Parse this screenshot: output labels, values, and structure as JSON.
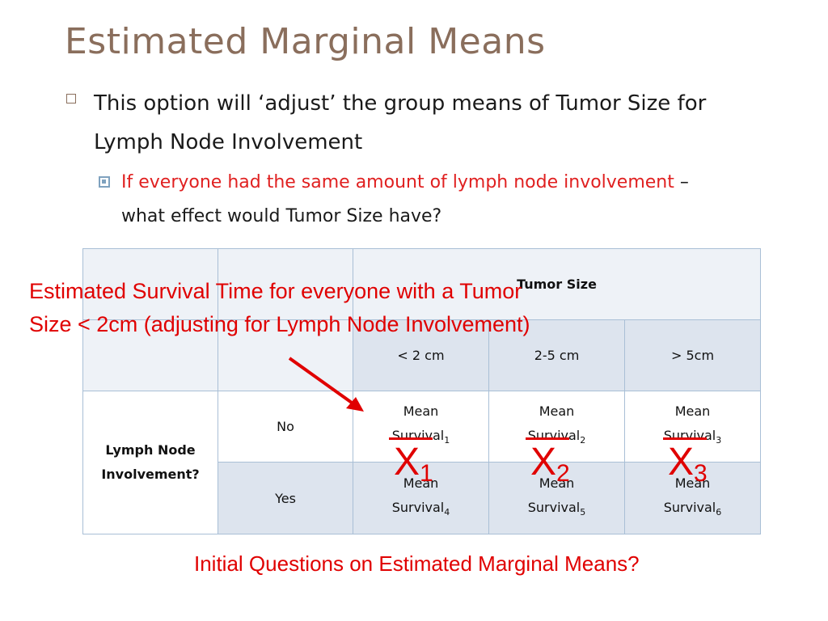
{
  "title": "Estimated Marginal Means",
  "bullet1": "This option will ‘adjust’ the group means of Tumor Size for Lymph Node Involvement",
  "bullet2": {
    "red_text": "If everyone had the same amount of lymph node involvement",
    "rest_text": " – what effect would Tumor Size have?"
  },
  "table": {
    "col_header": "Tumor Size",
    "cols": [
      "< 2 cm",
      "2-5 cm",
      "> 5cm"
    ],
    "row_header": "Lymph Node Involvement?",
    "rows": [
      "No",
      "Yes"
    ],
    "cell_word1": "Mean",
    "cell_word2": "Survival",
    "subs": [
      "1",
      "2",
      "3",
      "4",
      "5",
      "6"
    ]
  },
  "callout": "Estimated Survival Time for everyone with a Tumor Size < 2cm (adjusting for Lymph Node Involvement)",
  "xbar": {
    "letter": "X",
    "subs": [
      "1",
      "2",
      "3"
    ]
  },
  "footer": "Initial Questions on Estimated Marginal Means?",
  "colors": {
    "title": "#8a6e5c",
    "accent_red": "#e00000",
    "table_border": "#a9bfd6",
    "bullet_blue": "#7fa2bf"
  }
}
